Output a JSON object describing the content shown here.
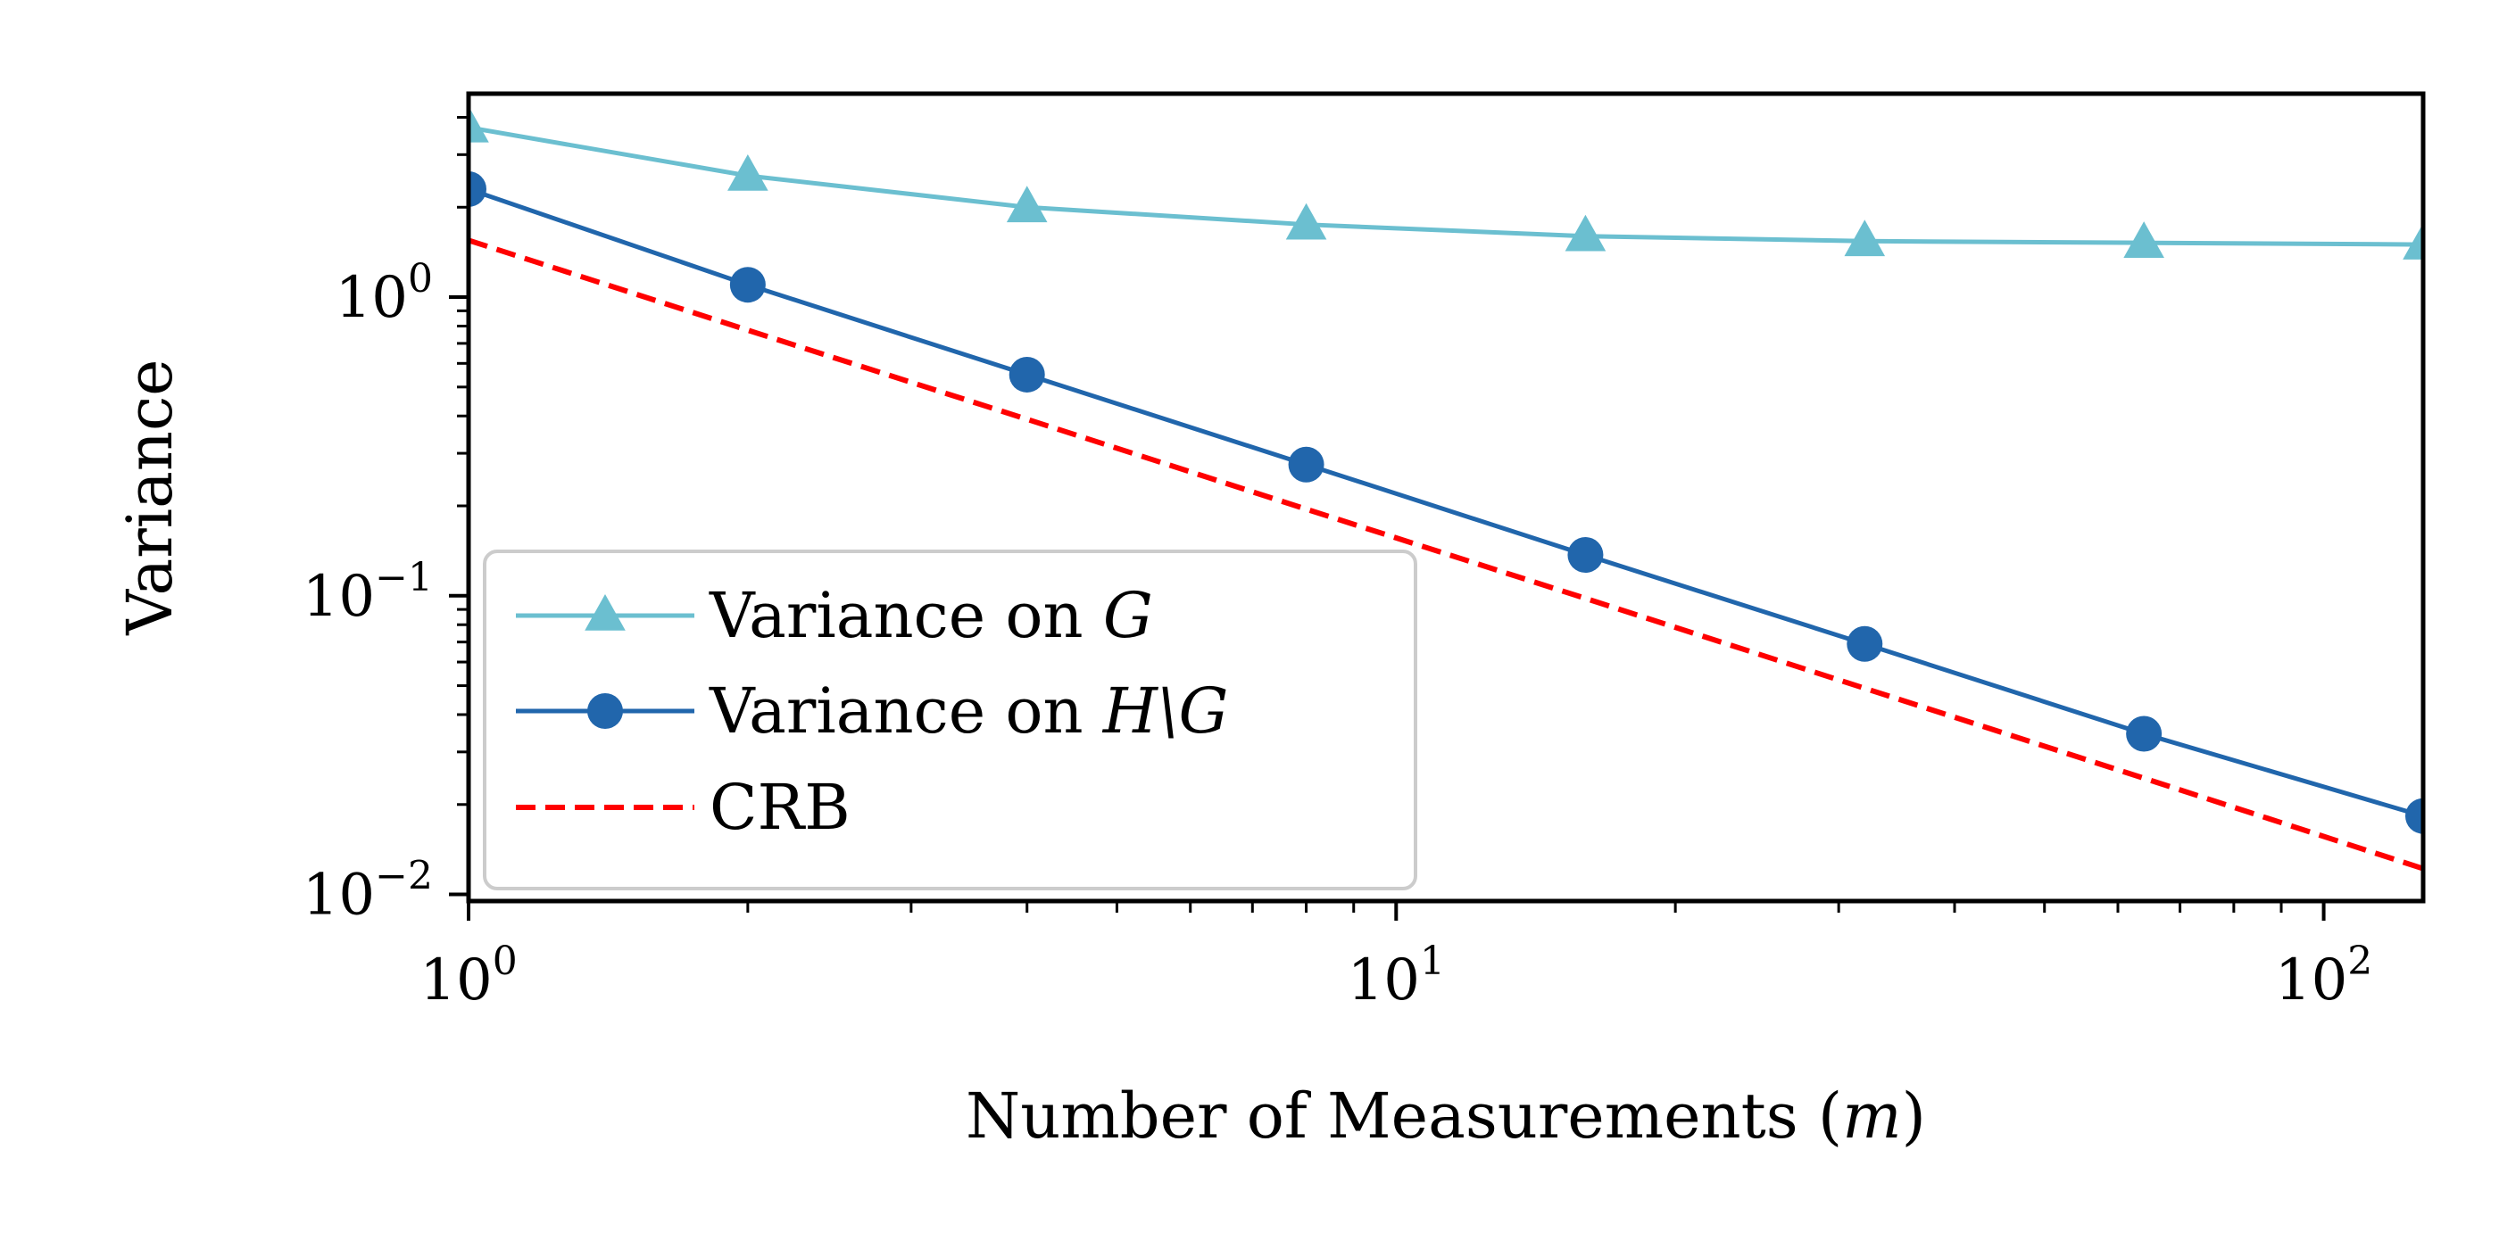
{
  "chart_data": {
    "type": "line",
    "xlabel_prefix": "Number of Measurements (",
    "xlabel_var": "m",
    "xlabel_suffix": ")",
    "ylabel": "Variance",
    "xscale": "log",
    "yscale": "log",
    "xlim": [
      1,
      128
    ],
    "ylim": [
      0.0095,
      4.8
    ],
    "grid": false,
    "legend_position": "lower-left",
    "x_ticks": [
      {
        "base": "10",
        "exp": "0",
        "value": 1
      },
      {
        "base": "10",
        "exp": "1",
        "value": 10
      },
      {
        "base": "10",
        "exp": "2",
        "value": 100
      }
    ],
    "y_ticks": [
      {
        "base": "10",
        "exp": "0",
        "value": 1
      },
      {
        "base": "10",
        "exp": "−1",
        "value": 0.1
      },
      {
        "base": "10",
        "exp": "−2",
        "value": 0.01
      }
    ],
    "x": [
      1,
      2,
      4,
      8,
      16,
      32,
      64,
      128
    ],
    "series": [
      {
        "legend_prefix": "Variance on ",
        "legend_var": "G",
        "color": "#6bbfd0",
        "marker": "triangle",
        "dash": false,
        "values": [
          3.7,
          2.55,
          2.0,
          1.75,
          1.6,
          1.54,
          1.52,
          1.5
        ]
      },
      {
        "legend_prefix": "Variance on ",
        "legend_var": "H\\G",
        "color": "#2166ac",
        "marker": "circle",
        "dash": false,
        "values": [
          2.3,
          1.1,
          0.55,
          0.275,
          0.137,
          0.069,
          0.0345,
          0.0183
        ]
      },
      {
        "legend_prefix": "CRB",
        "legend_var": "",
        "color": "#ff0000",
        "marker": "none",
        "dash": true,
        "values": [
          1.55,
          0.775,
          0.39,
          0.195,
          0.098,
          0.049,
          0.0245,
          0.0122
        ]
      }
    ]
  }
}
